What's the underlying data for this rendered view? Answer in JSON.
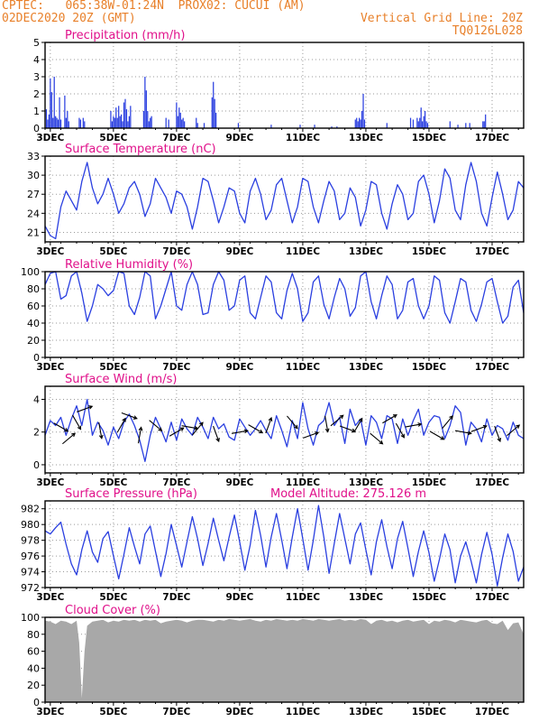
{
  "header": {
    "line1_left": "CPTEC:   065:38W-01:24N  PROX02: CUCUI (AM)",
    "line2_left": "02DEC2020 20Z (GMT)",
    "line2_right": "Vertical Grid Line: 20Z",
    "line3_right": "TQ0126L028"
  },
  "colors": {
    "header": "#e8802a",
    "panel_title": "#e0108a",
    "series": "#2a3fe0",
    "cloud_fill": "#a8a8a8",
    "wind_arrow": "#000000"
  },
  "x_ticks": [
    "3DEC",
    "5DEC",
    "7DEC",
    "9DEC",
    "11DEC",
    "13DEC",
    "15DEC",
    "17DEC"
  ],
  "chart_data": [
    {
      "id": "precip",
      "type": "bar",
      "title": "Precipitation (mm/h)",
      "ylim": [
        0,
        5
      ],
      "yticks": [
        0,
        1,
        2,
        3,
        4,
        5
      ],
      "grid": true,
      "time_range_hours": [
        0,
        364
      ],
      "x_ticks": [
        "3DEC",
        "5DEC",
        "7DEC",
        "9DEC",
        "11DEC",
        "13DEC",
        "15DEC",
        "17DEC"
      ],
      "x_hours": [
        4,
        52,
        100,
        148,
        196,
        244,
        292,
        340
      ],
      "hours": [
        1,
        2,
        3,
        4,
        5,
        6,
        7,
        8,
        9,
        10,
        11,
        12,
        15,
        16,
        17,
        18,
        26,
        27,
        29,
        30,
        50,
        51,
        52,
        53,
        54,
        55,
        56,
        57,
        58,
        59,
        60,
        61,
        62,
        63,
        64,
        65,
        75,
        76,
        77,
        78,
        79,
        80,
        81,
        92,
        94,
        100,
        101,
        102,
        103,
        104,
        105,
        106,
        115,
        116,
        121,
        127,
        128,
        129,
        130,
        147,
        172,
        194,
        205,
        218,
        222,
        236,
        237,
        238,
        239,
        240,
        241,
        242,
        243,
        260,
        278,
        280,
        283,
        284,
        285,
        286,
        287,
        288,
        289,
        290,
        291,
        308,
        314,
        320,
        323,
        333,
        334,
        335
      ],
      "values": [
        1.1,
        0.5,
        0.8,
        2.9,
        2.1,
        0.6,
        3.0,
        0.7,
        0.6,
        0.5,
        1.8,
        0.5,
        1.9,
        0.6,
        1.0,
        0.4,
        0.6,
        0.5,
        0.6,
        0.4,
        1.0,
        0.4,
        0.7,
        0.6,
        1.2,
        0.6,
        1.3,
        0.7,
        0.8,
        0.4,
        1.5,
        1.7,
        1.1,
        0.4,
        0.7,
        1.3,
        1.0,
        3.0,
        2.2,
        1.0,
        0.4,
        0.6,
        0.7,
        0.6,
        0.5,
        1.5,
        0.7,
        1.2,
        0.9,
        0.5,
        0.6,
        0.4,
        0.6,
        0.3,
        0.3,
        1.8,
        2.7,
        1.7,
        0.9,
        0.3,
        0.2,
        0.2,
        0.2,
        0.1,
        0.1,
        0.5,
        0.6,
        0.4,
        0.6,
        0.5,
        1.0,
        2.0,
        0.5,
        0.3,
        0.6,
        0.5,
        0.6,
        0.4,
        0.6,
        1.2,
        0.4,
        0.7,
        1.0,
        0.4,
        0.3,
        0.4,
        0.2,
        0.3,
        0.3,
        0.4,
        0.4,
        0.8
      ]
    },
    {
      "id": "temp",
      "type": "line",
      "title": "Surface Temperature (nC)",
      "ylim": [
        19.5,
        33
      ],
      "yticks": [
        21,
        24,
        27,
        30,
        33
      ],
      "grid": true,
      "time_range_hours": [
        0,
        364
      ],
      "x_ticks": [
        "3DEC",
        "5DEC",
        "7DEC",
        "9DEC",
        "11DEC",
        "13DEC",
        "15DEC",
        "17DEC"
      ],
      "x_hours": [
        4,
        52,
        100,
        148,
        196,
        244,
        292,
        340
      ],
      "x": [
        0,
        4,
        8,
        12,
        16,
        20,
        24,
        28,
        32,
        36,
        40,
        44,
        48,
        52,
        56,
        60,
        64,
        68,
        72,
        76,
        80,
        84,
        88,
        92,
        96,
        100,
        104,
        108,
        112,
        116,
        120,
        124,
        128,
        132,
        136,
        140,
        144,
        148,
        152,
        156,
        160,
        164,
        168,
        172,
        176,
        180,
        184,
        188,
        192,
        196,
        200,
        204,
        208,
        212,
        216,
        220,
        224,
        228,
        232,
        236,
        240,
        244,
        248,
        252,
        256,
        260,
        264,
        268,
        272,
        276,
        280,
        284,
        288,
        292,
        296,
        300,
        304,
        308,
        312,
        316,
        320,
        324,
        328,
        332,
        336,
        340,
        344,
        348,
        352,
        356,
        360,
        364
      ],
      "y": [
        22.0,
        20.5,
        20.0,
        25.0,
        27.5,
        26.0,
        24.5,
        29.0,
        32.0,
        28.0,
        25.5,
        27.0,
        29.5,
        27.0,
        24.0,
        25.5,
        28.0,
        29.0,
        27.0,
        23.5,
        25.5,
        29.5,
        28.0,
        26.5,
        24.0,
        27.5,
        27.0,
        25.0,
        21.5,
        25.0,
        29.5,
        29.0,
        26.0,
        22.5,
        25.0,
        28.0,
        27.5,
        24.0,
        22.5,
        27.5,
        29.5,
        27.0,
        23.0,
        24.5,
        28.5,
        29.5,
        26.0,
        22.5,
        25.0,
        29.5,
        29.0,
        25.0,
        22.5,
        26.0,
        29.0,
        27.5,
        23.0,
        24.0,
        28.0,
        26.5,
        22.0,
        24.5,
        29.0,
        28.5,
        24.0,
        21.5,
        25.5,
        28.5,
        27.0,
        23.0,
        24.0,
        29.0,
        30.0,
        27.0,
        22.5,
        26.0,
        31.0,
        29.5,
        24.5,
        23.0,
        28.5,
        32.0,
        29.0,
        24.0,
        22.0,
        26.5,
        30.5,
        27.0,
        23.0,
        24.5,
        29.0,
        28.0
      ]
    },
    {
      "id": "rh",
      "type": "line",
      "title": "Relative Humidity (%)",
      "ylim": [
        0,
        100
      ],
      "yticks": [
        0,
        20,
        40,
        60,
        80,
        100
      ],
      "grid": true,
      "time_range_hours": [
        0,
        364
      ],
      "x_ticks": [
        "3DEC",
        "5DEC",
        "7DEC",
        "9DEC",
        "11DEC",
        "13DEC",
        "15DEC",
        "17DEC"
      ],
      "x_hours": [
        4,
        52,
        100,
        148,
        196,
        244,
        292,
        340
      ],
      "x": [
        0,
        4,
        8,
        12,
        16,
        20,
        24,
        28,
        32,
        36,
        40,
        44,
        48,
        52,
        56,
        60,
        64,
        68,
        72,
        76,
        80,
        84,
        88,
        92,
        96,
        100,
        104,
        108,
        112,
        116,
        120,
        124,
        128,
        132,
        136,
        140,
        144,
        148,
        152,
        156,
        160,
        164,
        168,
        172,
        176,
        180,
        184,
        188,
        192,
        196,
        200,
        204,
        208,
        212,
        216,
        220,
        224,
        228,
        232,
        236,
        240,
        244,
        248,
        252,
        256,
        260,
        264,
        268,
        272,
        276,
        280,
        284,
        288,
        292,
        296,
        300,
        304,
        308,
        312,
        316,
        320,
        324,
        328,
        332,
        336,
        340,
        344,
        348,
        352,
        356,
        360,
        364
      ],
      "y": [
        85,
        98,
        100,
        68,
        72,
        95,
        100,
        75,
        42,
        60,
        85,
        80,
        72,
        78,
        100,
        98,
        60,
        50,
        70,
        100,
        95,
        45,
        60,
        80,
        100,
        60,
        55,
        85,
        100,
        85,
        50,
        52,
        85,
        100,
        90,
        55,
        60,
        90,
        95,
        52,
        45,
        70,
        95,
        88,
        52,
        45,
        78,
        98,
        80,
        42,
        52,
        88,
        95,
        62,
        45,
        70,
        92,
        80,
        48,
        58,
        95,
        100,
        65,
        45,
        72,
        95,
        85,
        45,
        55,
        88,
        92,
        60,
        45,
        60,
        95,
        90,
        52,
        40,
        65,
        92,
        88,
        55,
        42,
        62,
        88,
        92,
        65,
        40,
        48,
        82,
        90,
        52
      ]
    },
    {
      "id": "wind",
      "type": "line",
      "title": "Surface Wind (m/s)",
      "ylim": [
        -0.5,
        4.8
      ],
      "yticks": [
        0,
        2,
        4
      ],
      "grid": true,
      "time_range_hours": [
        0,
        364
      ],
      "x_ticks": [
        "3DEC",
        "5DEC",
        "7DEC",
        "9DEC",
        "11DEC",
        "13DEC",
        "15DEC",
        "17DEC"
      ],
      "x_hours": [
        4,
        52,
        100,
        148,
        196,
        244,
        292,
        340
      ],
      "x": [
        0,
        4,
        8,
        12,
        16,
        20,
        24,
        28,
        32,
        36,
        40,
        44,
        48,
        52,
        56,
        60,
        64,
        68,
        72,
        76,
        80,
        84,
        88,
        92,
        96,
        100,
        104,
        108,
        112,
        116,
        120,
        124,
        128,
        132,
        136,
        140,
        144,
        148,
        152,
        156,
        160,
        164,
        168,
        172,
        176,
        180,
        184,
        188,
        192,
        196,
        200,
        204,
        208,
        212,
        216,
        220,
        224,
        228,
        232,
        236,
        240,
        244,
        248,
        252,
        256,
        260,
        264,
        268,
        272,
        276,
        280,
        284,
        288,
        292,
        296,
        300,
        304,
        308,
        312,
        316,
        320,
        324,
        328,
        332,
        336,
        340,
        344,
        348,
        352,
        356,
        360,
        364
      ],
      "y": [
        1.8,
        2.7,
        2.4,
        2.9,
        1.8,
        2.8,
        3.6,
        2.4,
        4.0,
        1.8,
        2.6,
        2.1,
        1.2,
        2.3,
        1.6,
        2.6,
        3.1,
        2.4,
        1.5,
        0.2,
        1.8,
        2.9,
        2.2,
        1.4,
        2.6,
        1.5,
        2.8,
        2.2,
        1.8,
        2.9,
        2.3,
        1.6,
        2.9,
        2.2,
        2.5,
        1.7,
        1.5,
        2.8,
        2.3,
        1.8,
        2.2,
        2.7,
        2.1,
        1.6,
        3.0,
        2.1,
        1.1,
        2.7,
        1.6,
        3.8,
        2.2,
        1.2,
        2.4,
        2.7,
        3.8,
        2.4,
        2.9,
        1.3,
        3.4,
        2.4,
        2.8,
        1.2,
        3.0,
        2.6,
        1.6,
        3.0,
        2.8,
        1.3,
        2.8,
        1.8,
        2.7,
        3.4,
        1.8,
        2.6,
        3.0,
        2.9,
        1.6,
        2.4,
        3.6,
        3.2,
        1.2,
        2.6,
        2.2,
        1.4,
        2.8,
        1.8,
        2.4,
        2.2,
        1.5,
        2.6,
        1.8,
        1.6
      ]
    },
    {
      "id": "pres",
      "type": "line",
      "title": "Surface Pressure (hPa)",
      "annotation": "Model Altitude: 275.126 m",
      "ylim": [
        972,
        983
      ],
      "yticks": [
        972,
        974,
        976,
        978,
        980,
        982
      ],
      "grid": true,
      "time_range_hours": [
        0,
        364
      ],
      "x_ticks": [
        "3DEC",
        "5DEC",
        "7DEC",
        "9DEC",
        "11DEC",
        "13DEC",
        "15DEC",
        "17DEC"
      ],
      "x_hours": [
        4,
        52,
        100,
        148,
        196,
        244,
        292,
        340
      ],
      "x": [
        0,
        4,
        8,
        12,
        16,
        20,
        24,
        28,
        32,
        36,
        40,
        44,
        48,
        52,
        56,
        60,
        64,
        68,
        72,
        76,
        80,
        84,
        88,
        92,
        96,
        100,
        104,
        108,
        112,
        116,
        120,
        124,
        128,
        132,
        136,
        140,
        144,
        148,
        152,
        156,
        160,
        164,
        168,
        172,
        176,
        180,
        184,
        188,
        192,
        196,
        200,
        204,
        208,
        212,
        216,
        220,
        224,
        228,
        232,
        236,
        240,
        244,
        248,
        252,
        256,
        260,
        264,
        268,
        272,
        276,
        280,
        284,
        288,
        292,
        296,
        300,
        304,
        308,
        312,
        316,
        320,
        324,
        328,
        332,
        336,
        340,
        344,
        348,
        352,
        356,
        360,
        364
      ],
      "y": [
        979.2,
        978.8,
        979.6,
        980.3,
        977.5,
        975.0,
        973.6,
        976.8,
        979.2,
        976.5,
        975.2,
        978.2,
        979.1,
        976.0,
        973.1,
        976.2,
        979.6,
        977.2,
        975.0,
        978.8,
        979.8,
        976.6,
        973.4,
        976.3,
        980.0,
        977.3,
        974.6,
        977.8,
        981.0,
        978.2,
        974.8,
        977.6,
        980.8,
        978.0,
        975.4,
        978.4,
        981.2,
        977.8,
        974.2,
        977.4,
        981.8,
        978.6,
        974.6,
        978.4,
        981.4,
        978.0,
        974.4,
        978.4,
        982.0,
        978.2,
        974.2,
        978.0,
        982.4,
        978.4,
        973.8,
        977.6,
        981.4,
        978.2,
        975.0,
        978.8,
        980.2,
        976.8,
        973.6,
        977.8,
        980.6,
        977.2,
        974.4,
        978.2,
        980.4,
        977.0,
        973.4,
        976.6,
        979.2,
        976.4,
        972.8,
        975.6,
        978.8,
        976.8,
        972.6,
        976.0,
        977.8,
        975.4,
        972.6,
        976.2,
        979.0,
        976.2,
        972.2,
        975.8,
        978.8,
        976.6,
        972.8,
        974.6
      ]
    },
    {
      "id": "cloud",
      "type": "area",
      "title": "Cloud Cover (%)",
      "ylim": [
        0,
        100
      ],
      "yticks": [
        0,
        20,
        40,
        60,
        80,
        100
      ],
      "grid": true,
      "time_range_hours": [
        0,
        364
      ],
      "x_ticks": [
        "3DEC",
        "5DEC",
        "7DEC",
        "9DEC",
        "11DEC",
        "13DEC",
        "15DEC",
        "17DEC"
      ],
      "x_hours": [
        4,
        52,
        100,
        148,
        196,
        244,
        292,
        340
      ],
      "x": [
        0,
        4,
        8,
        12,
        16,
        20,
        24,
        26,
        28,
        30,
        32,
        36,
        40,
        44,
        48,
        52,
        56,
        60,
        64,
        68,
        72,
        76,
        80,
        84,
        88,
        92,
        96,
        100,
        104,
        108,
        112,
        116,
        120,
        124,
        128,
        132,
        136,
        140,
        144,
        148,
        152,
        156,
        160,
        164,
        168,
        172,
        176,
        180,
        184,
        188,
        192,
        196,
        200,
        204,
        208,
        212,
        216,
        220,
        224,
        228,
        232,
        236,
        240,
        244,
        248,
        252,
        256,
        260,
        264,
        268,
        272,
        276,
        280,
        284,
        288,
        292,
        296,
        300,
        304,
        308,
        312,
        316,
        320,
        324,
        328,
        332,
        336,
        340,
        344,
        348,
        352,
        356,
        360,
        364
      ],
      "y": [
        96,
        95,
        92,
        96,
        95,
        92,
        96,
        70,
        5,
        60,
        90,
        95,
        96,
        97,
        94,
        96,
        95,
        97,
        96,
        97,
        95,
        97,
        96,
        97,
        93,
        95,
        96,
        97,
        96,
        94,
        96,
        97,
        97,
        96,
        95,
        97,
        96,
        98,
        97,
        96,
        97,
        98,
        96,
        95,
        97,
        96,
        98,
        97,
        96,
        97,
        96,
        98,
        97,
        96,
        98,
        97,
        96,
        97,
        98,
        96,
        97,
        96,
        98,
        97,
        92,
        96,
        97,
        95,
        96,
        94,
        96,
        97,
        95,
        96,
        97,
        92,
        96,
        95,
        97,
        96,
        94,
        97,
        96,
        95,
        94,
        96,
        97,
        93,
        92,
        96,
        85,
        93,
        94,
        80
      ]
    }
  ]
}
